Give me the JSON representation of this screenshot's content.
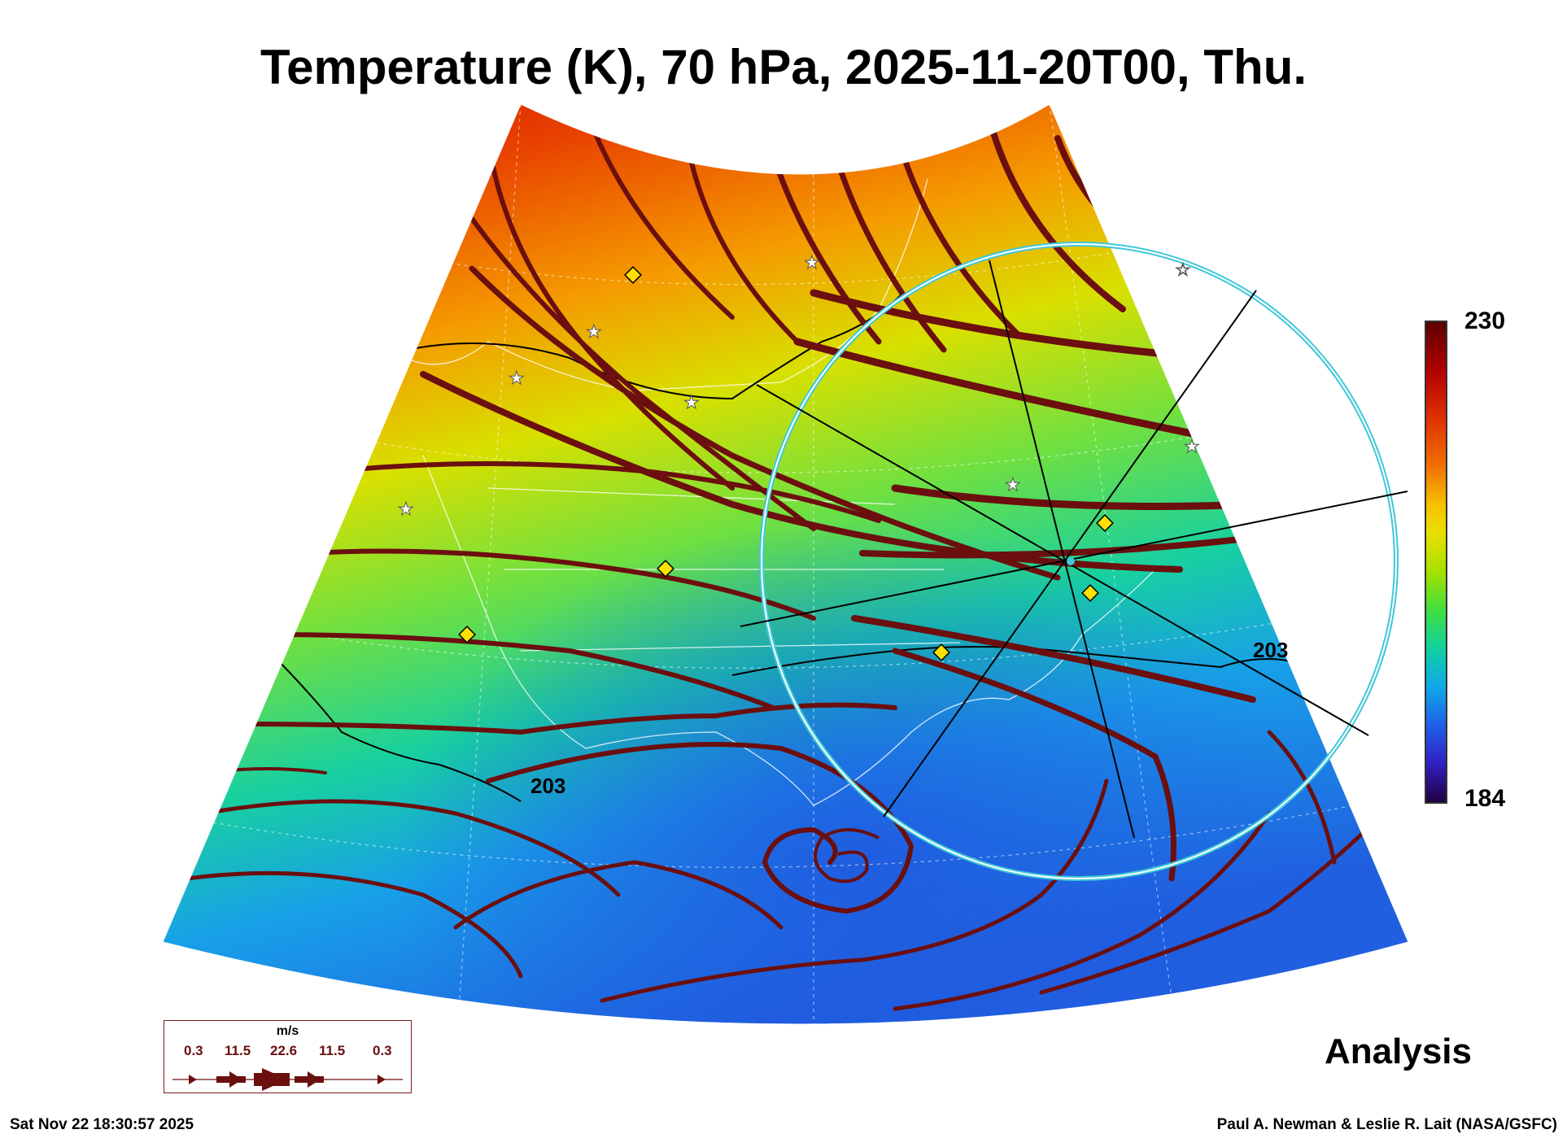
{
  "title": "Temperature (K), 70 hPa, 2025-11-20T00, Thu.",
  "colorbar": {
    "max": "230",
    "min": "184",
    "colors": [
      "#5c0000",
      "#e03000",
      "#f8c000",
      "#a8e000",
      "#10d0a0",
      "#2060e8",
      "#200040"
    ]
  },
  "contour_labels": [
    "203",
    "203"
  ],
  "label": "Analysis",
  "timestamp": "Sat Nov 22 18:30:57 2025",
  "credit": "Paul A. Newman & Leslie R. Lait (NASA/GSFC)",
  "legend": {
    "unit": "m/s",
    "values": [
      "0.3",
      "11.5",
      "22.6",
      "11.5",
      "0.3"
    ]
  },
  "colors": {
    "streamline": "#6b0f0f",
    "ring": "#40c8d8",
    "marker": "#ffe000"
  }
}
